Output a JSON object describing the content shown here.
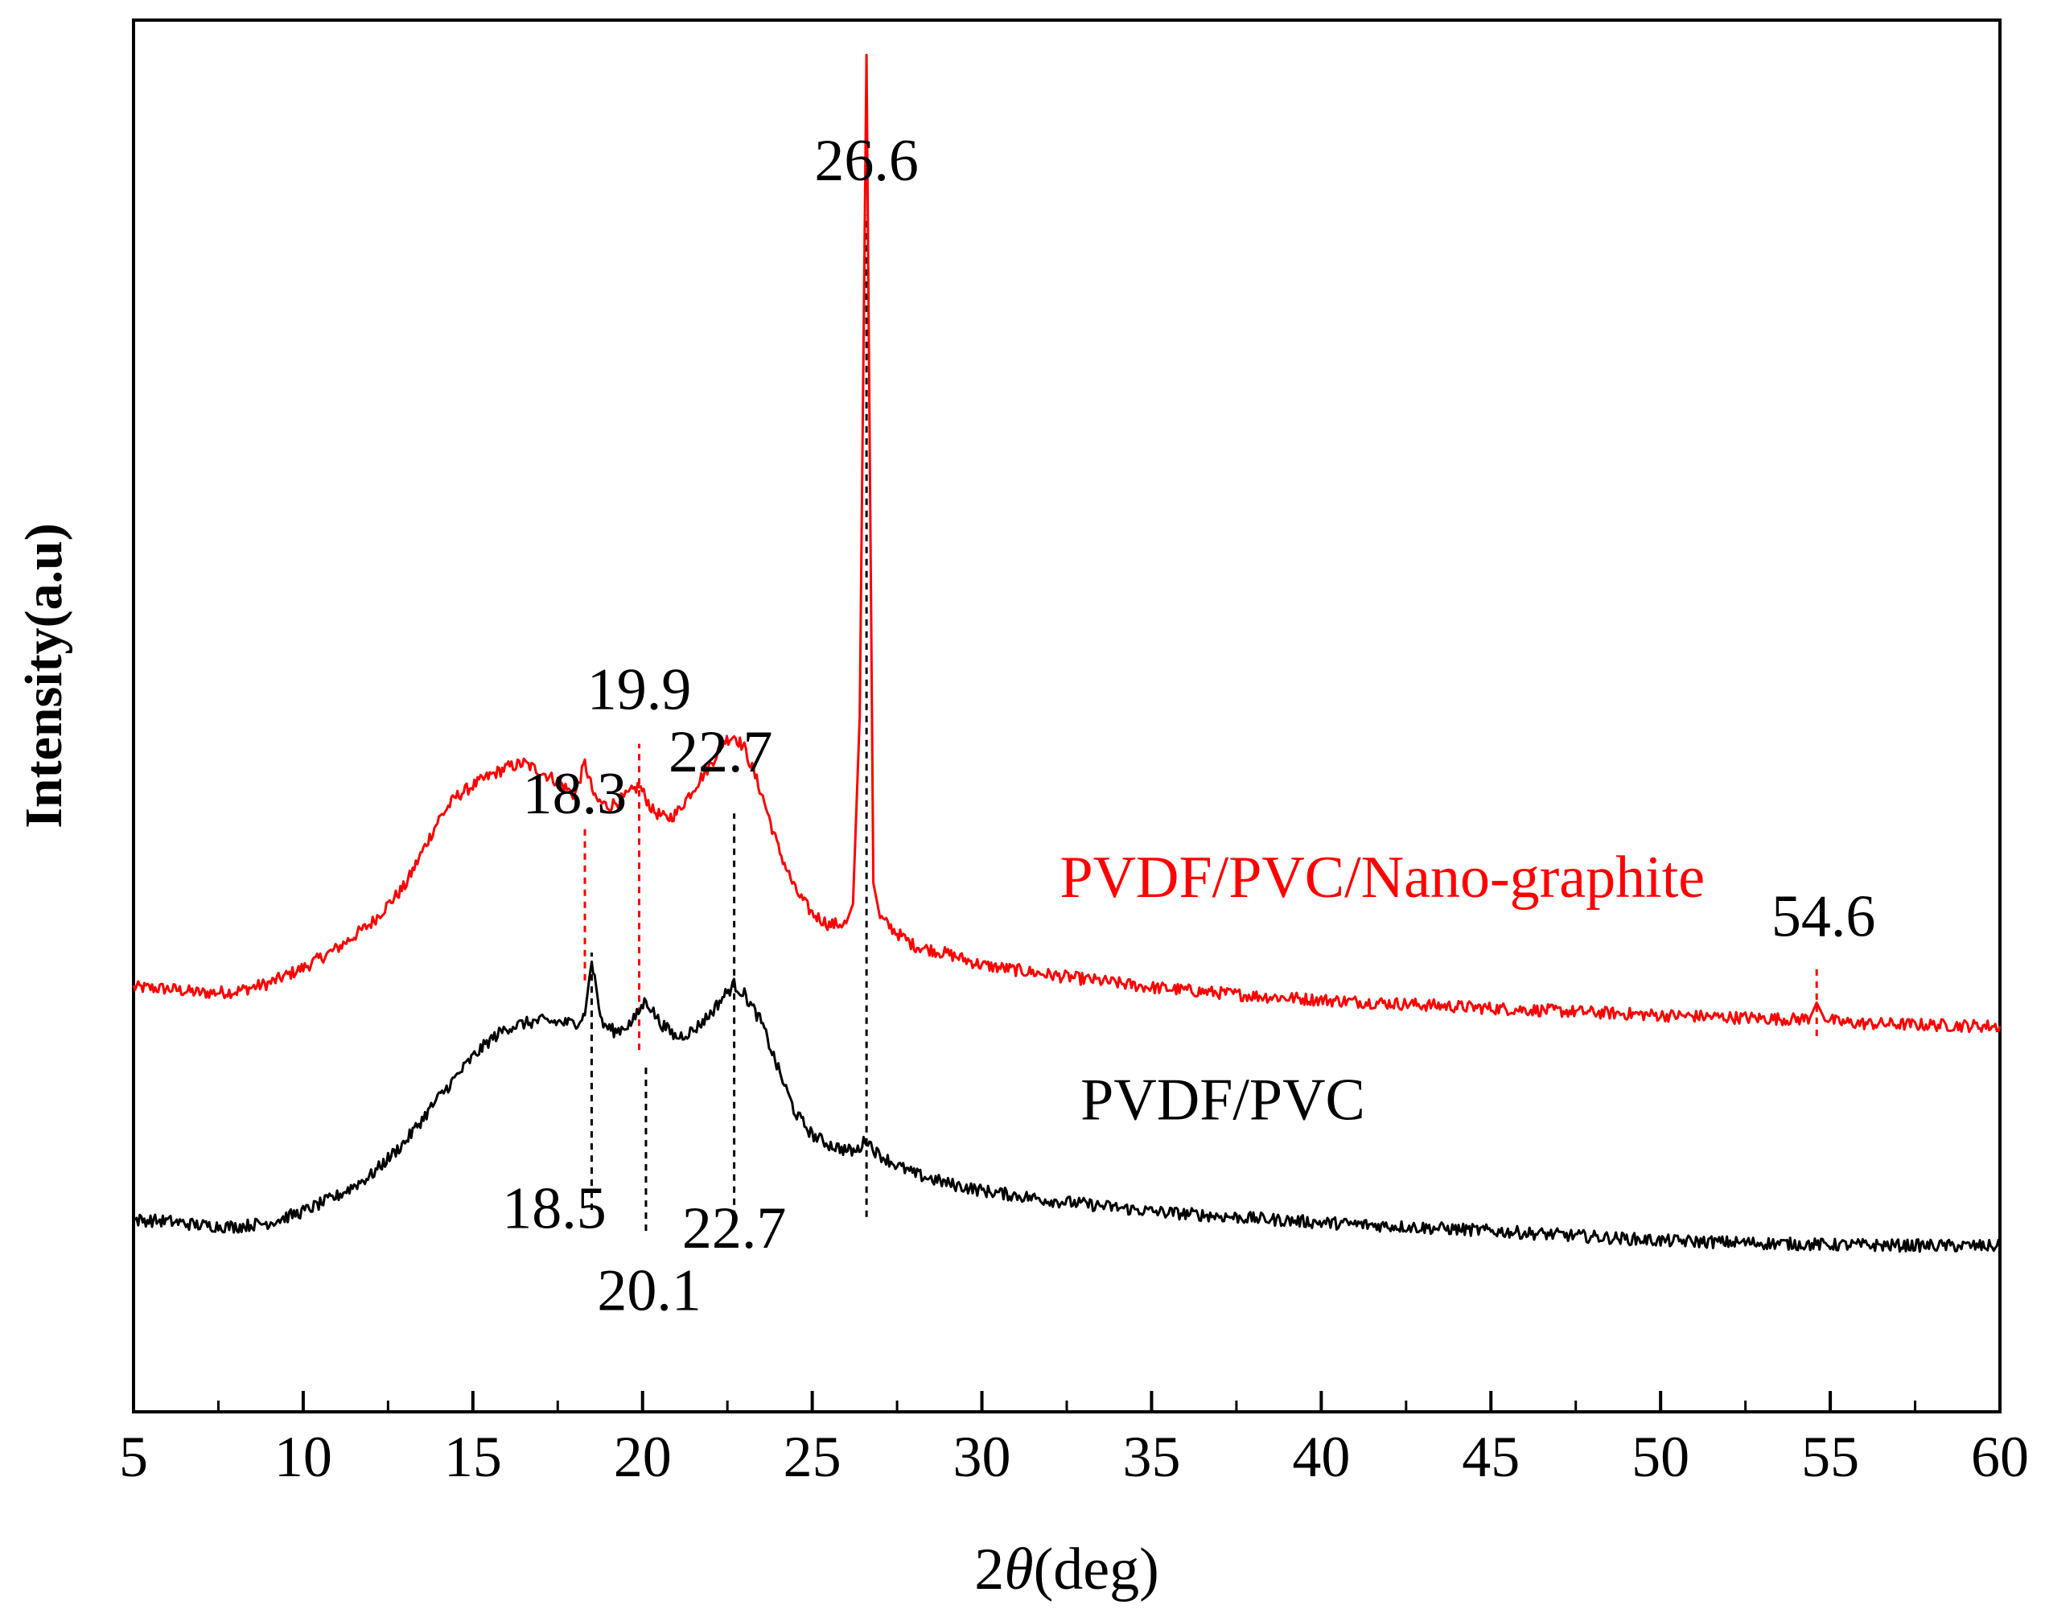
{
  "chart_data": {
    "type": "line",
    "title": "",
    "xlabel_prefix": "2",
    "xlabel_symbol": "θ",
    "xlabel_suffix": "(deg)",
    "ylabel": "Intensity(a.u)",
    "xlim": [
      5,
      60
    ],
    "ylim": [
      0,
      100
    ],
    "x_ticks": [
      5,
      10,
      15,
      20,
      25,
      30,
      35,
      40,
      45,
      50,
      55,
      60
    ],
    "x_tick_labels": [
      "5",
      "10",
      "15",
      "20",
      "25",
      "30",
      "35",
      "40",
      "45",
      "50",
      "55",
      "60"
    ],
    "grid": false,
    "series": [
      {
        "name": "PVDF/PVC/Nano-graphite",
        "color": "#ff0000",
        "x": [
          5,
          6,
          7,
          8,
          9,
          10,
          11,
          12,
          13,
          14,
          14.5,
          15,
          15.5,
          16,
          16.5,
          17,
          17.5,
          18,
          18.3,
          18.6,
          19,
          19.5,
          19.9,
          20.3,
          20.7,
          21,
          21.5,
          22,
          22.4,
          22.7,
          23,
          23.5,
          24,
          24.5,
          25,
          25.5,
          26,
          26.2,
          26.4,
          26.6,
          26.8,
          27,
          27.5,
          28,
          29,
          30,
          32,
          35,
          38,
          40,
          45,
          50,
          54,
          54.4,
          54.6,
          54.8,
          55.2,
          56,
          58,
          60
        ],
        "y": [
          30.5,
          30.4,
          30.1,
          30.2,
          30.8,
          31.9,
          33.3,
          35.1,
          37.8,
          42.6,
          44.2,
          45.0,
          45.7,
          46.3,
          46.6,
          46.0,
          45.3,
          44.3,
          46.6,
          44.0,
          43.5,
          44.2,
          45.0,
          43.2,
          42.6,
          43.0,
          44.8,
          46.5,
          48.2,
          48.6,
          47.7,
          44.5,
          40.5,
          37.5,
          35.8,
          35.0,
          35.1,
          36.5,
          50.0,
          97.5,
          38.0,
          35.5,
          34.4,
          33.5,
          32.9,
          32.1,
          31.4,
          30.5,
          29.9,
          29.6,
          29.0,
          28.5,
          28.2,
          28.3,
          29.4,
          28.4,
          28.0,
          27.9,
          27.8,
          27.7
        ]
      },
      {
        "name": "PVDF/PVC",
        "color": "#000000",
        "x": [
          5,
          6,
          7,
          8,
          9,
          10,
          11,
          12,
          13,
          14,
          15,
          15.5,
          16,
          16.5,
          17,
          17.5,
          18,
          18.3,
          18.5,
          18.8,
          19.2,
          19.7,
          20.1,
          20.5,
          21,
          21.5,
          22,
          22.4,
          22.7,
          23,
          23.5,
          24,
          24.5,
          25,
          25.5,
          26,
          26.3,
          26.6,
          26.9,
          27.5,
          28,
          29,
          30,
          32,
          35,
          38,
          40,
          45,
          50,
          55,
          60
        ],
        "y": [
          13.8,
          13.7,
          13.4,
          13.3,
          13.6,
          14.4,
          15.5,
          17.0,
          19.4,
          22.6,
          25.5,
          26.7,
          27.6,
          27.9,
          28.1,
          28.0,
          27.9,
          28.5,
          32.5,
          27.9,
          27.3,
          28.0,
          29.6,
          28.0,
          26.9,
          27.4,
          28.6,
          29.9,
          30.7,
          30.0,
          28.0,
          24.6,
          21.5,
          19.9,
          19.2,
          18.8,
          18.7,
          19.6,
          18.6,
          17.7,
          17.1,
          16.4,
          15.9,
          15.2,
          14.4,
          13.9,
          13.6,
          13.0,
          12.3,
          12.0,
          11.9
        ]
      }
    ],
    "series_labels": [
      {
        "text": "PVDF/PVC/Nano-graphite",
        "color": "#ff0000",
        "x": 41.8,
        "y": 37
      },
      {
        "text": "PVDF/PVC",
        "color": "#000000",
        "x": 37.1,
        "y": 21
      }
    ],
    "annotations": [
      {
        "label": "26.6",
        "color": "#000000",
        "x": 26.6,
        "line_y": [
          14,
          88
        ],
        "label_x": 26.6,
        "label_y": 88.5
      },
      {
        "label": "19.9",
        "color": "#000000",
        "x": 19.9,
        "line_y": [
          26,
          48
        ],
        "label_x": 19.9,
        "label_y": 50.5
      },
      {
        "label": "18.3",
        "color": "#000000",
        "x": 18.3,
        "line_y": [
          31,
          42
        ],
        "label_x": 18.0,
        "label_y": 43
      },
      {
        "label": "22.7",
        "color": "#000000",
        "x": 22.7,
        "line_y": [
          14,
          43
        ],
        "label_x": 22.3,
        "label_y": 46
      },
      {
        "label": "54.6",
        "color": "#000000",
        "x": 54.6,
        "line_y": [
          27,
          32
        ],
        "label_x": 54.8,
        "label_y": 34.2
      },
      {
        "label": "18.5",
        "color": "#000000",
        "x": 18.5,
        "line_y": [
          15,
          33
        ],
        "label_x": 17.4,
        "label_y": 13.2
      },
      {
        "label": "20.1",
        "color": "#000000",
        "x": 20.1,
        "line_y": [
          13,
          24
        ],
        "label_x": 20.2,
        "label_y": 7.3
      },
      {
        "label": "22.7",
        "color": "#000000",
        "x": 22.7,
        "line_y": [
          14,
          28
        ],
        "label_x": 22.7,
        "label_y": 11.8
      }
    ],
    "dashed_lines": [
      {
        "x": 26.6,
        "y_from": 14,
        "y_to": 86,
        "color": "#000000"
      },
      {
        "x": 22.7,
        "y_from": 14,
        "y_to": 43,
        "color": "#000000"
      },
      {
        "x": 18.5,
        "y_from": 14.5,
        "y_to": 33,
        "color": "#000000"
      },
      {
        "x": 20.1,
        "y_from": 13,
        "y_to": 25,
        "color": "#000000"
      },
      {
        "x": 18.3,
        "y_from": 31,
        "y_to": 42,
        "color": "#ff0000"
      },
      {
        "x": 19.9,
        "y_from": 26,
        "y_to": 48,
        "color": "#ff0000"
      },
      {
        "x": 54.6,
        "y_from": 27,
        "y_to": 32,
        "color": "#ff0000"
      }
    ]
  }
}
